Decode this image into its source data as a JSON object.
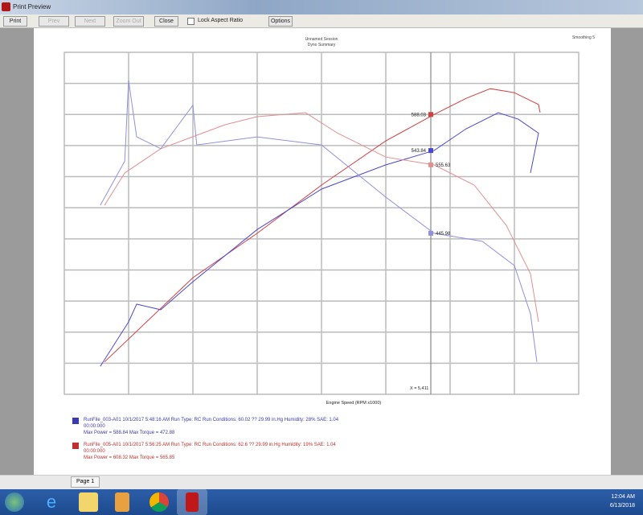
{
  "window": {
    "title": "Print Preview"
  },
  "toolbar": {
    "print": "Print",
    "prev": "Prev",
    "next": "Next",
    "zoom": "Zoom Out",
    "close": "Close",
    "lock_aspect": "Lock Aspect Ratio",
    "options": "Options"
  },
  "chart_data": {
    "type": "line",
    "title": "Unnamed Session",
    "subtitle": "Dyno Summary",
    "top_right_label": "Smoothing 5",
    "xlabel": "Engine Speed (RPM x1000)",
    "xlim": [
      1000,
      9000
    ],
    "ylim": [
      0,
      110
    ],
    "grid": true,
    "cursor": {
      "x": 6700,
      "label": "X = 5,411"
    },
    "series": [
      {
        "color": "#d04040",
        "x": [
          1625,
          3000,
          4000,
          5000,
          6000,
          6750,
          7250,
          7625,
          8000,
          8375,
          8400
        ],
        "y": [
          10.4,
          37.5,
          51.8,
          67.3,
          81.5,
          90,
          95.2,
          98.3,
          97,
          93.2,
          90.6
        ]
      },
      {
        "color": "#4a4ad0",
        "x": [
          1560,
          2000,
          2125,
          2500,
          3000,
          4000,
          5000,
          6000,
          6750,
          7250,
          7750,
          8060,
          8375,
          8250
        ],
        "y": [
          9,
          23.3,
          29,
          27.2,
          36.2,
          53,
          66,
          73.8,
          78.4,
          85.4,
          90.6,
          88.5,
          84,
          71.2
        ]
      },
      {
        "color": "#e09090",
        "x": [
          1625,
          1940,
          2500,
          3500,
          4000,
          4750,
          5250,
          6000,
          6750,
          7375,
          7875,
          8250,
          8375
        ],
        "y": [
          60.8,
          71.2,
          79,
          86.7,
          89.3,
          90.6,
          84,
          76.3,
          73.8,
          67.3,
          54.3,
          38.8,
          23.3
        ]
      },
      {
        "color": "#9090e0",
        "x": [
          1560,
          1940,
          2000,
          2125,
          2500,
          3000,
          3060,
          4000,
          5000,
          6000,
          6750,
          7500,
          8000,
          8250,
          8350
        ],
        "y": [
          60.8,
          75,
          101,
          82.8,
          79,
          93,
          80.2,
          82.8,
          80.2,
          63.4,
          51.8,
          49.2,
          41.4,
          25.9,
          10.4
        ]
      }
    ],
    "markers": [
      {
        "label": "588.03",
        "x": 6700,
        "y": 90,
        "color": "#d04040",
        "side": "left"
      },
      {
        "label": "543.84",
        "x": 6700,
        "y": 78.4,
        "color": "#4a4ad0",
        "side": "left"
      },
      {
        "label": "555.63",
        "x": 6700,
        "y": 73.8,
        "color": "#e09090",
        "side": "right"
      },
      {
        "label": "445.98",
        "x": 6700,
        "y": 51.8,
        "color": "#9090e0",
        "side": "right"
      }
    ]
  },
  "legend": [
    {
      "color": "#3a3ab0",
      "line1": "RunFile_003-A01 10/1/2017 5:48:16 AM  Run Type: RC  Run Conditions: 60.02 ??  29.99 in.Hg  Humidity: 28%  SAE: 1.04",
      "line2": "00:00:000",
      "line3": "Max Power = 588.84  Max Torque = 472.88"
    },
    {
      "color": "#c03030",
      "line1": "RunFile_005-A01 10/1/2017 5:56:25 AM  Run Type: RC  Run Conditions: 62.6 ??  29.99 in.Hg  Humidity: 19%  SAE: 1.04",
      "line2": "00:00:000",
      "line3": "Max Power = 608.32  Max Torque = 565.85"
    }
  ],
  "statusbar": {
    "page": "Page 1"
  },
  "taskbar": {
    "time": "12:04 AM",
    "date": "6/13/2018"
  }
}
